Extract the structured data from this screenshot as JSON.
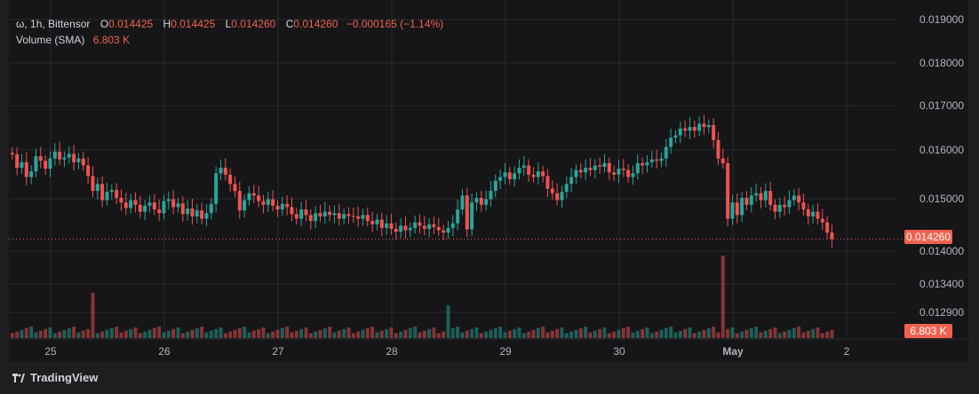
{
  "legend": {
    "symbol": "ω, 1h, Bittensor",
    "o_label": "O",
    "o_value": "0.014425",
    "h_label": "H",
    "h_value": "0.014425",
    "l_label": "L",
    "l_value": "0.014260",
    "c_label": "C",
    "c_value": "0.014260",
    "change": "−0.000165 (−1.14%)",
    "volume_label": "Volume (SMA)",
    "volume_value": "6.803 K"
  },
  "badges": {
    "price": "0.014260",
    "volume": "6.803 K"
  },
  "brand": "TradingView",
  "colors": {
    "up": "#26a69a",
    "down": "#ef5350",
    "price_line": "#f0614f"
  },
  "chart_data": {
    "type": "candlestick",
    "title": "",
    "xlabel": "",
    "ylabel": "",
    "interval": "1h",
    "grid": true,
    "price_axis": {
      "ticks": [
        "0.019000",
        "0.018000",
        "0.017000",
        "0.016000",
        "0.015000",
        "0.014000",
        "0.013400",
        "0.012900"
      ],
      "tick_values": [
        0.019,
        0.018,
        0.017,
        0.016,
        0.015,
        0.014,
        0.0134,
        0.0129
      ],
      "last_price": 0.01426
    },
    "time_axis": {
      "ticks": [
        "25",
        "26",
        "27",
        "28",
        "29",
        "30",
        "May",
        "2"
      ]
    },
    "volume_last": "6.803 K",
    "day_opens": [
      0.01609,
      0.01493,
      0.01488,
      0.01475,
      0.01447,
      0.0157,
      0.0166,
      0.01475
    ],
    "candles_path": [
      [
        0.01609,
        0.0158,
        0.01592,
        0.0156,
        0.01572,
        0.01605,
        0.01595,
        0.01578,
        0.016,
        0.01615,
        0.01598,
        0.01602,
        0.0161,
        0.01592,
        0.016,
        0.01585,
        0.01562,
        0.0153,
        0.01545,
        0.0151,
        0.01528,
        0.01532,
        0.01515,
        0.01505
      ],
      [
        0.01493,
        0.0151,
        0.015,
        0.01485,
        0.01498,
        0.01505,
        0.0149,
        0.01482,
        0.01508,
        0.01512,
        0.01495,
        0.01503,
        0.0148,
        0.01492,
        0.01475,
        0.01488,
        0.0147,
        0.01482,
        0.01502,
        0.01568,
        0.0158,
        0.01565,
        0.01545,
        0.0153
      ],
      [
        0.01488,
        0.0151,
        0.01525,
        0.0152,
        0.01508,
        0.015,
        0.01512,
        0.01498,
        0.0149,
        0.01502,
        0.01495,
        0.0148,
        0.0147,
        0.0149,
        0.01478,
        0.01465,
        0.01482,
        0.01475,
        0.01485,
        0.01478,
        0.01482,
        0.0147,
        0.0148,
        0.01476
      ],
      [
        0.01475,
        0.0147,
        0.01478,
        0.01465,
        0.01458,
        0.01468,
        0.0145,
        0.0146,
        0.01448,
        0.01442,
        0.01455,
        0.01445,
        0.0145,
        0.01462,
        0.01455,
        0.01448,
        0.01458,
        0.01452,
        0.01445,
        0.0144,
        0.0145,
        0.0146,
        0.0149,
        0.0152
      ],
      [
        0.01447,
        0.01505,
        0.01515,
        0.015,
        0.01512,
        0.0153,
        0.01552,
        0.0156,
        0.0157,
        0.01555,
        0.01568,
        0.0158,
        0.01585,
        0.01565,
        0.0156,
        0.01572,
        0.01562,
        0.01535,
        0.01525,
        0.0151,
        0.01528,
        0.01545,
        0.0156,
        0.01575
      ],
      [
        0.0157,
        0.0158,
        0.01575,
        0.01585,
        0.01582,
        0.0159,
        0.0157,
        0.01565,
        0.01578,
        0.01575,
        0.0156,
        0.01568,
        0.0159,
        0.01585,
        0.01592,
        0.01598,
        0.01595,
        0.016,
        0.01625,
        0.01645,
        0.0165,
        0.01665,
        0.0166,
        0.01668
      ],
      [
        0.0166,
        0.01675,
        0.01668,
        0.01672,
        0.0164,
        0.016,
        0.0159,
        0.0147,
        0.01505,
        0.01478,
        0.01515,
        0.015,
        0.0152,
        0.01525,
        0.0151,
        0.0153,
        0.015,
        0.01485,
        0.015,
        0.01495,
        0.0151,
        0.0152,
        0.01505,
        0.0149
      ],
      [
        0.01475,
        0.01485,
        0.0147,
        0.01462,
        0.0144,
        0.01426
      ]
    ],
    "volume_peaks": [
      {
        "day": "25",
        "hour": 17,
        "value_rel": 0.55
      },
      {
        "day": "28",
        "hour": 20,
        "value_rel": 0.4
      },
      {
        "day": "May",
        "hour": 6,
        "value_rel": 1.0
      }
    ]
  }
}
